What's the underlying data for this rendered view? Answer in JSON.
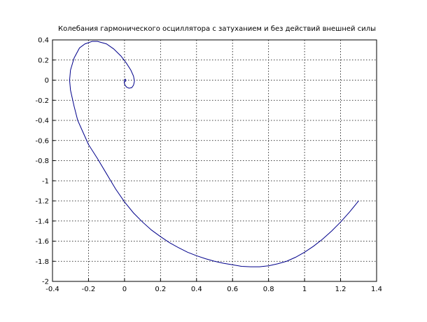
{
  "chart_data": {
    "type": "line",
    "title": "Колебания гармонического осциллятора с затуханием и без действий внешней силы",
    "xlabel": "",
    "ylabel": "",
    "xlim": [
      -0.4,
      1.4
    ],
    "ylim": [
      -2,
      0.4
    ],
    "grid": true,
    "x_ticks": [
      -0.4,
      -0.2,
      0,
      0.2,
      0.4,
      0.6,
      0.8,
      1,
      1.2,
      1.4
    ],
    "x_tick_labels": [
      "-0.4",
      "-0.2",
      "0",
      "0.2",
      "0.4",
      "0.6",
      "0.8",
      "1",
      "1.2",
      "1.4"
    ],
    "y_ticks": [
      0.4,
      0.2,
      0,
      -0.2,
      -0.4,
      -0.6,
      -0.8,
      -1,
      -1.2,
      -1.4,
      -1.6,
      -1.8,
      -2
    ],
    "y_tick_labels": [
      "0.4",
      "0.2",
      "0",
      "-0.2",
      "-0.4",
      "-0.6",
      "-0.8",
      "-1",
      "-1.2",
      "-1.4",
      "-1.6",
      "-1.8",
      "-2"
    ],
    "line_color": "#00008b",
    "series": [
      {
        "x": [
          1.3,
          1.25,
          1.2,
          1.15,
          1.1,
          1.05,
          1.0,
          0.95,
          0.9,
          0.85,
          0.8,
          0.75,
          0.7,
          0.65,
          0.6,
          0.55,
          0.5,
          0.45,
          0.4,
          0.35,
          0.3,
          0.25,
          0.2,
          0.15,
          0.1,
          0.05,
          0.0,
          -0.05,
          -0.1,
          -0.15,
          -0.2,
          -0.23,
          -0.26,
          -0.28,
          -0.3,
          -0.305,
          -0.3,
          -0.28,
          -0.25,
          -0.22,
          -0.18,
          -0.15,
          -0.1,
          -0.06,
          -0.02,
          0.01,
          0.035,
          0.05,
          0.055,
          0.05,
          0.04,
          0.025,
          0.012,
          0.003,
          -0.002,
          0.0,
          0.004,
          0.008,
          0.006,
          0.002
        ],
        "y": [
          -1.2,
          -1.31,
          -1.41,
          -1.5,
          -1.58,
          -1.65,
          -1.71,
          -1.76,
          -1.8,
          -1.825,
          -1.845,
          -1.855,
          -1.855,
          -1.85,
          -1.835,
          -1.82,
          -1.8,
          -1.775,
          -1.745,
          -1.71,
          -1.665,
          -1.615,
          -1.555,
          -1.49,
          -1.41,
          -1.32,
          -1.21,
          -1.08,
          -0.93,
          -0.78,
          -0.64,
          -0.52,
          -0.4,
          -0.26,
          -0.1,
          0.0,
          0.1,
          0.22,
          0.32,
          0.36,
          0.385,
          0.385,
          0.36,
          0.31,
          0.24,
          0.17,
          0.1,
          0.04,
          -0.01,
          -0.05,
          -0.075,
          -0.08,
          -0.07,
          -0.05,
          -0.025,
          0.0,
          0.01,
          0.0,
          -0.012,
          -0.008
        ]
      }
    ]
  }
}
